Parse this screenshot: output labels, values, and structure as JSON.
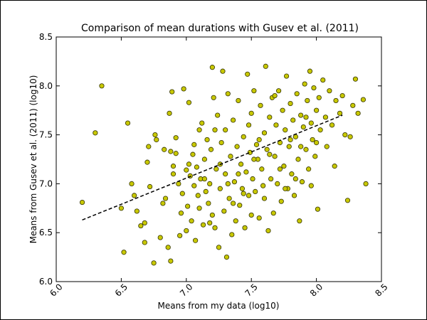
{
  "chart_data": {
    "type": "scatter",
    "title": "Comparison of mean durations with Gusev et al. (2011)",
    "xlabel": "Means from my data (log10)",
    "ylabel": "Means from Gusev et al. (2011) (log10)",
    "xlim": [
      6.0,
      8.5
    ],
    "ylim": [
      6.0,
      8.5
    ],
    "xticks": [
      "6.0",
      "6.5",
      "7.0",
      "7.5",
      "8.0",
      "8.5"
    ],
    "yticks": [
      "6.0",
      "6.5",
      "7.0",
      "7.5",
      "8.0",
      "8.5"
    ],
    "grid": false,
    "legend": "none",
    "colors": {
      "marker_fill": "#c8c800",
      "marker_edge": "#333300",
      "trend_line": "#000000"
    },
    "trend_line": {
      "style": "dashed",
      "x": [
        6.2,
        8.2
      ],
      "y": [
        6.63,
        7.7
      ]
    },
    "series": [
      {
        "points": [
          [
            6.2,
            6.81
          ],
          [
            6.3,
            7.52
          ],
          [
            6.35,
            8.0
          ],
          [
            6.5,
            6.75
          ],
          [
            6.52,
            6.3
          ],
          [
            6.55,
            7.62
          ],
          [
            6.58,
            7.0
          ],
          [
            6.6,
            6.88
          ],
          [
            6.62,
            6.72
          ],
          [
            6.65,
            6.57
          ],
          [
            6.68,
            6.4
          ],
          [
            6.68,
            6.6
          ],
          [
            6.7,
            7.22
          ],
          [
            6.71,
            7.38
          ],
          [
            6.72,
            6.97
          ],
          [
            6.75,
            6.19
          ],
          [
            6.76,
            7.5
          ],
          [
            6.77,
            7.45
          ],
          [
            6.8,
            6.45
          ],
          [
            6.82,
            6.8
          ],
          [
            6.83,
            7.35
          ],
          [
            6.84,
            6.85
          ],
          [
            6.86,
            6.35
          ],
          [
            6.87,
            7.72
          ],
          [
            6.88,
            6.21
          ],
          [
            6.88,
            7.33
          ],
          [
            6.89,
            7.94
          ],
          [
            6.9,
            7.1
          ],
          [
            6.9,
            7.18
          ],
          [
            6.92,
            7.31
          ],
          [
            6.92,
            7.47
          ],
          [
            6.94,
            7.0
          ],
          [
            6.95,
            6.47
          ],
          [
            6.96,
            6.7
          ],
          [
            6.97,
            6.9
          ],
          [
            6.98,
            7.97
          ],
          [
            7.0,
            7.14
          ],
          [
            7.0,
            6.52
          ],
          [
            7.01,
            6.77
          ],
          [
            7.02,
            7.83
          ],
          [
            7.03,
            7.08
          ],
          [
            7.04,
            6.62
          ],
          [
            7.05,
            7.3
          ],
          [
            7.06,
            6.98
          ],
          [
            7.07,
            6.42
          ],
          [
            7.08,
            7.17
          ],
          [
            7.09,
            6.88
          ],
          [
            7.1,
            7.55
          ],
          [
            7.1,
            6.75
          ],
          [
            7.11,
            7.05
          ],
          [
            7.12,
            7.62
          ],
          [
            7.13,
            6.58
          ],
          [
            7.14,
            7.25
          ],
          [
            7.15,
            6.92
          ],
          [
            7.16,
            7.45
          ],
          [
            7.17,
            6.8
          ],
          [
            7.18,
            7.0
          ],
          [
            7.19,
            7.35
          ],
          [
            7.2,
            8.19
          ],
          [
            7.2,
            6.68
          ],
          [
            7.21,
            7.88
          ],
          [
            7.22,
            6.55
          ],
          [
            7.23,
            7.15
          ],
          [
            7.24,
            7.7
          ],
          [
            7.25,
            6.35
          ],
          [
            7.26,
            6.95
          ],
          [
            7.27,
            7.42
          ],
          [
            7.28,
            8.15
          ],
          [
            7.29,
            6.72
          ],
          [
            7.3,
            7.1
          ],
          [
            7.3,
            7.55
          ],
          [
            7.31,
            6.25
          ],
          [
            7.32,
            7.92
          ],
          [
            7.33,
            6.85
          ],
          [
            7.34,
            7.28
          ],
          [
            7.35,
            6.48
          ],
          [
            7.36,
            7.65
          ],
          [
            7.37,
            7.02
          ],
          [
            7.38,
            6.62
          ],
          [
            7.39,
            7.38
          ],
          [
            7.4,
            7.85
          ],
          [
            7.41,
            6.78
          ],
          [
            7.42,
            7.2
          ],
          [
            7.43,
            6.95
          ],
          [
            7.44,
            7.48
          ],
          [
            7.45,
            6.55
          ],
          [
            7.46,
            7.12
          ],
          [
            7.47,
            8.12
          ],
          [
            7.48,
            6.88
          ],
          [
            7.49,
            7.32
          ],
          [
            7.5,
            7.72
          ],
          [
            7.5,
            6.68
          ],
          [
            7.51,
            7.05
          ],
          [
            7.52,
            7.95
          ],
          [
            7.53,
            6.92
          ],
          [
            7.54,
            7.4
          ],
          [
            7.55,
            7.25
          ],
          [
            7.56,
            6.65
          ],
          [
            7.57,
            7.8
          ],
          [
            7.58,
            7.15
          ],
          [
            7.59,
            6.98
          ],
          [
            7.6,
            7.52
          ],
          [
            7.61,
            8.2
          ],
          [
            7.62,
            7.35
          ],
          [
            7.63,
            6.52
          ],
          [
            7.64,
            7.68
          ],
          [
            7.65,
            7.05
          ],
          [
            7.66,
            7.88
          ],
          [
            7.67,
            6.7
          ],
          [
            7.68,
            7.28
          ],
          [
            7.69,
            7.6
          ],
          [
            7.7,
            7.0
          ],
          [
            7.71,
            7.95
          ],
          [
            7.72,
            7.42
          ],
          [
            7.73,
            6.82
          ],
          [
            7.74,
            7.75
          ],
          [
            7.75,
            7.18
          ],
          [
            7.76,
            7.55
          ],
          [
            7.77,
            8.1
          ],
          [
            7.78,
            6.95
          ],
          [
            7.79,
            7.38
          ],
          [
            7.8,
            7.82
          ],
          [
            7.81,
            7.1
          ],
          [
            7.82,
            7.65
          ],
          [
            7.83,
            6.88
          ],
          [
            7.84,
            7.48
          ],
          [
            7.85,
            7.92
          ],
          [
            7.86,
            7.25
          ],
          [
            7.87,
            6.62
          ],
          [
            7.88,
            7.7
          ],
          [
            7.89,
            7.02
          ],
          [
            7.9,
            7.58
          ],
          [
            7.91,
            8.02
          ],
          [
            7.92,
            7.35
          ],
          [
            7.93,
            7.85
          ],
          [
            7.94,
            7.15
          ],
          [
            7.95,
            8.15
          ],
          [
            7.96,
            7.62
          ],
          [
            7.97,
            7.45
          ],
          [
            7.98,
            7.98
          ],
          [
            7.99,
            7.28
          ],
          [
            8.0,
            7.75
          ],
          [
            8.01,
            6.74
          ],
          [
            8.02,
            7.88
          ],
          [
            8.03,
            7.55
          ],
          [
            8.05,
            8.06
          ],
          [
            8.07,
            7.68
          ],
          [
            8.08,
            7.38
          ],
          [
            8.1,
            7.95
          ],
          [
            8.12,
            7.6
          ],
          [
            8.14,
            7.18
          ],
          [
            8.15,
            7.85
          ],
          [
            8.18,
            7.72
          ],
          [
            8.2,
            7.9
          ],
          [
            8.22,
            7.5
          ],
          [
            8.24,
            6.83
          ],
          [
            8.26,
            7.48
          ],
          [
            8.28,
            7.8
          ],
          [
            8.3,
            8.07
          ],
          [
            8.32,
            7.72
          ],
          [
            8.36,
            7.86
          ],
          [
            8.38,
            7.0
          ],
          [
            7.02,
            7.2
          ],
          [
            7.06,
            7.4
          ],
          [
            7.14,
            7.05
          ],
          [
            7.18,
            6.6
          ],
          [
            7.22,
            7.55
          ],
          [
            7.26,
            7.2
          ],
          [
            7.32,
            7.0
          ],
          [
            7.36,
            6.8
          ],
          [
            7.4,
            7.1
          ],
          [
            7.44,
            6.9
          ],
          [
            7.48,
            7.6
          ],
          [
            7.52,
            7.25
          ],
          [
            7.56,
            7.45
          ],
          [
            7.6,
            6.85
          ],
          [
            7.64,
            7.3
          ],
          [
            7.68,
            7.9
          ],
          [
            7.72,
            7.15
          ],
          [
            7.76,
            6.95
          ],
          [
            7.8,
            7.45
          ],
          [
            7.84,
            7.05
          ],
          [
            7.88,
            7.38
          ],
          [
            7.92,
            7.68
          ],
          [
            7.96,
            6.98
          ],
          [
            8.0,
            7.42
          ]
        ]
      }
    ]
  }
}
